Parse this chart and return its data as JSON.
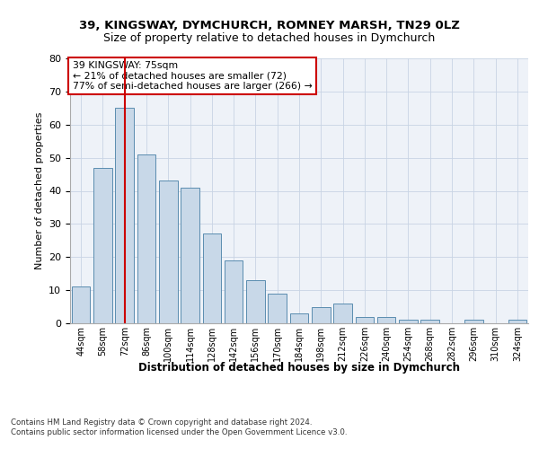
{
  "title1": "39, KINGSWAY, DYMCHURCH, ROMNEY MARSH, TN29 0LZ",
  "title2": "Size of property relative to detached houses in Dymchurch",
  "xlabel": "Distribution of detached houses by size in Dymchurch",
  "ylabel": "Number of detached properties",
  "categories": [
    "44sqm",
    "58sqm",
    "72sqm",
    "86sqm",
    "100sqm",
    "114sqm",
    "128sqm",
    "142sqm",
    "156sqm",
    "170sqm",
    "184sqm",
    "198sqm",
    "212sqm",
    "226sqm",
    "240sqm",
    "254sqm",
    "268sqm",
    "282sqm",
    "296sqm",
    "310sqm",
    "324sqm"
  ],
  "values": [
    11,
    47,
    65,
    51,
    43,
    41,
    27,
    19,
    13,
    9,
    3,
    5,
    6,
    2,
    2,
    1,
    1,
    0,
    1,
    0,
    1
  ],
  "bar_color": "#c8d8e8",
  "bar_edge_color": "#5b8db0",
  "grid_color": "#c8d4e4",
  "background_color": "#eef2f8",
  "annotation_box_text": "39 KINGSWAY: 75sqm\n← 21% of detached houses are smaller (72)\n77% of semi-detached houses are larger (266) →",
  "annotation_box_color": "#cc0000",
  "vline_x_index": 2,
  "vline_color": "#cc0000",
  "ylim": [
    0,
    80
  ],
  "yticks": [
    0,
    10,
    20,
    30,
    40,
    50,
    60,
    70,
    80
  ],
  "footer1": "Contains HM Land Registry data © Crown copyright and database right 2024.",
  "footer2": "Contains public sector information licensed under the Open Government Licence v3.0."
}
